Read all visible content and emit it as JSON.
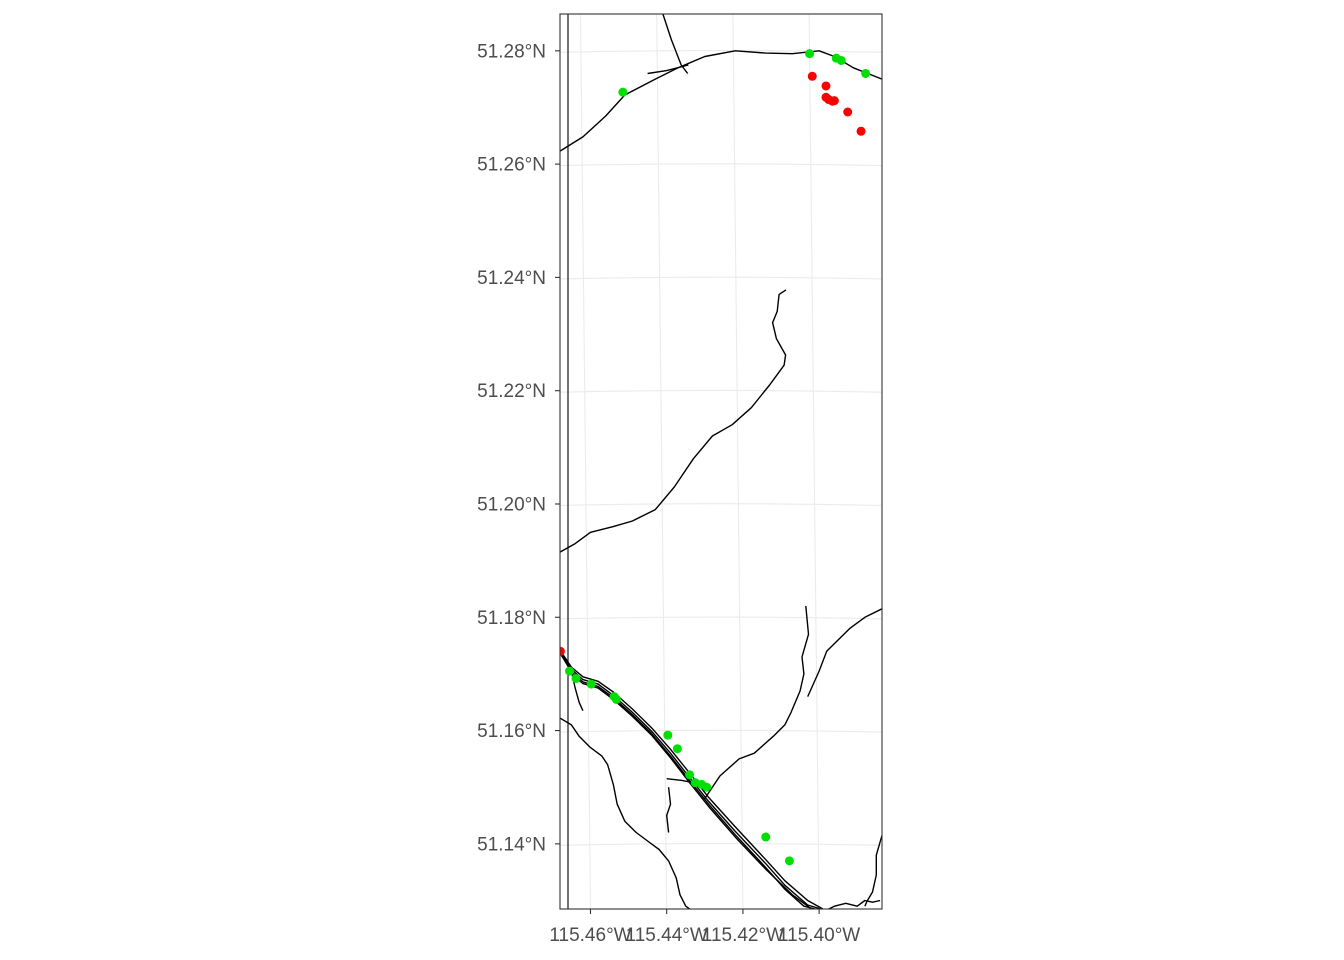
{
  "chart_data": {
    "type": "scatter",
    "title": "",
    "xlabel": "",
    "ylabel": "",
    "xlim": [
      -115.468,
      -115.3835
    ],
    "ylim": [
      51.1285,
      51.2865
    ],
    "x_ticks": [
      {
        "value": -115.46,
        "label": "115.46°W"
      },
      {
        "value": -115.44,
        "label": "115.44°W"
      },
      {
        "value": -115.42,
        "label": "115.42°W"
      },
      {
        "value": -115.4,
        "label": "115.40°W"
      }
    ],
    "y_ticks": [
      {
        "value": 51.14,
        "label": "51.14°N"
      },
      {
        "value": 51.16,
        "label": "51.16°N"
      },
      {
        "value": 51.18,
        "label": "51.18°N"
      },
      {
        "value": 51.2,
        "label": "51.20°N"
      },
      {
        "value": 51.22,
        "label": "51.22°N"
      },
      {
        "value": 51.24,
        "label": "51.24°N"
      },
      {
        "value": 51.26,
        "label": "51.26°N"
      },
      {
        "value": 51.28,
        "label": "51.28°N"
      }
    ],
    "grid": true,
    "legend": "none",
    "colors": {
      "green": "#00e000",
      "red": "#ff0000",
      "lines": "#000000",
      "grid": "#ebebeb",
      "frame": "#333333",
      "tick_text": "#4d4d4d"
    },
    "series": [
      {
        "color": "#00e000",
        "points": [
          {
            "x": -115.4515,
            "y": 51.2727
          },
          {
            "x": -115.4025,
            "y": 51.2795
          },
          {
            "x": -115.3955,
            "y": 51.2787
          },
          {
            "x": -115.3942,
            "y": 51.2783
          },
          {
            "x": -115.3878,
            "y": 51.276
          },
          {
            "x": -115.4655,
            "y": 51.1705
          },
          {
            "x": -115.4638,
            "y": 51.1692
          },
          {
            "x": -115.4598,
            "y": 51.1682
          },
          {
            "x": -115.4538,
            "y": 51.166
          },
          {
            "x": -115.4532,
            "y": 51.1655
          },
          {
            "x": -115.4397,
            "y": 51.1592
          },
          {
            "x": -115.4372,
            "y": 51.1568
          },
          {
            "x": -115.434,
            "y": 51.1522
          },
          {
            "x": -115.4325,
            "y": 51.1508
          },
          {
            "x": -115.4308,
            "y": 51.1505
          },
          {
            "x": -115.4295,
            "y": 51.15
          },
          {
            "x": -115.414,
            "y": 51.1412
          },
          {
            "x": -115.4078,
            "y": 51.137
          }
        ]
      },
      {
        "color": "#ff0000",
        "points": [
          {
            "x": -115.4018,
            "y": 51.2755
          },
          {
            "x": -115.3982,
            "y": 51.2738
          },
          {
            "x": -115.3982,
            "y": 51.2718
          },
          {
            "x": -115.3975,
            "y": 51.2714
          },
          {
            "x": -115.3965,
            "y": 51.2711
          },
          {
            "x": -115.396,
            "y": 51.2712
          },
          {
            "x": -115.3925,
            "y": 51.2692
          },
          {
            "x": -115.389,
            "y": 51.2658
          },
          {
            "x": -115.4679,
            "y": 51.174
          }
        ]
      }
    ],
    "line_features": [
      [
        [
          -115.468,
          51.2623
        ],
        [
          -115.462,
          51.2648
        ],
        [
          -115.456,
          51.2685
        ],
        [
          -115.451,
          51.2722
        ],
        [
          -115.443,
          51.275
        ],
        [
          -115.437,
          51.277
        ],
        [
          -115.43,
          51.279
        ],
        [
          -115.422,
          51.28
        ],
        [
          -115.414,
          51.2796
        ],
        [
          -115.407,
          51.2795
        ],
        [
          -115.4,
          51.28
        ],
        [
          -115.396,
          51.279
        ],
        [
          -115.391,
          51.277
        ],
        [
          -115.3835,
          51.275
        ]
      ],
      [
        [
          -115.441,
          51.2865
        ],
        [
          -115.4388,
          51.282
        ],
        [
          -115.4362,
          51.2775
        ],
        [
          -115.4345,
          51.276
        ]
      ],
      [
        [
          -115.4343,
          51.2775
        ],
        [
          -115.44,
          51.2765
        ],
        [
          -115.445,
          51.276
        ]
      ],
      [
        [
          -115.4087,
          51.2378
        ],
        [
          -115.4105,
          51.237
        ],
        [
          -115.411,
          51.234
        ],
        [
          -115.4122,
          51.232
        ],
        [
          -115.4112,
          51.2292
        ],
        [
          -115.4088,
          51.2263
        ],
        [
          -115.4092,
          51.2245
        ],
        [
          -115.413,
          51.221
        ],
        [
          -115.4178,
          51.217
        ],
        [
          -115.4228,
          51.214
        ],
        [
          -115.428,
          51.212
        ],
        [
          -115.433,
          51.208
        ],
        [
          -115.438,
          51.203
        ],
        [
          -115.443,
          51.199
        ],
        [
          -115.449,
          51.197
        ],
        [
          -115.454,
          51.196
        ],
        [
          -115.46,
          51.195
        ],
        [
          -115.464,
          51.193
        ],
        [
          -115.468,
          51.1915
        ]
      ],
      [
        [
          -115.4035,
          51.182
        ],
        [
          -115.4028,
          51.177
        ],
        [
          -115.4045,
          51.173
        ],
        [
          -115.404,
          51.17
        ],
        [
          -115.405,
          51.167
        ],
        [
          -115.4075,
          51.163
        ],
        [
          -115.409,
          51.161
        ],
        [
          -115.412,
          51.159
        ],
        [
          -115.417,
          51.156
        ],
        [
          -115.421,
          51.155
        ],
        [
          -115.426,
          51.152
        ],
        [
          -115.43,
          51.148
        ]
      ],
      [
        [
          -115.403,
          51.166
        ],
        [
          -115.4,
          51.1705
        ],
        [
          -115.398,
          51.174
        ],
        [
          -115.395,
          51.176
        ],
        [
          -115.392,
          51.178
        ],
        [
          -115.388,
          51.18
        ],
        [
          -115.3835,
          51.1815
        ]
      ],
      [
        [
          -115.468,
          51.1742
        ],
        [
          -115.465,
          51.1712
        ],
        [
          -115.462,
          51.1695
        ],
        [
          -115.458,
          51.1687
        ],
        [
          -115.454,
          51.1668
        ],
        [
          -115.449,
          51.1638
        ],
        [
          -115.444,
          51.1605
        ],
        [
          -115.439,
          51.1567
        ],
        [
          -115.434,
          51.1525
        ],
        [
          -115.429,
          51.1482
        ],
        [
          -115.422,
          51.143
        ],
        [
          -115.414,
          51.1372
        ],
        [
          -115.409,
          51.1335
        ],
        [
          -115.403,
          51.13
        ],
        [
          -115.399,
          51.1285
        ]
      ],
      [
        [
          -115.468,
          51.174
        ],
        [
          -115.465,
          51.1708
        ],
        [
          -115.462,
          51.169
        ],
        [
          -115.458,
          51.1682
        ],
        [
          -115.454,
          51.1662
        ],
        [
          -115.449,
          51.1632
        ],
        [
          -115.444,
          51.1599
        ],
        [
          -115.439,
          51.156
        ],
        [
          -115.434,
          51.1517
        ],
        [
          -115.429,
          51.1475
        ],
        [
          -115.422,
          51.1422
        ],
        [
          -115.414,
          51.1365
        ],
        [
          -115.409,
          51.1327
        ],
        [
          -115.403,
          51.1292
        ],
        [
          -115.3995,
          51.1285
        ]
      ],
      [
        [
          -115.468,
          51.1737
        ],
        [
          -115.465,
          51.1704
        ],
        [
          -115.462,
          51.1686
        ],
        [
          -115.458,
          51.1678
        ],
        [
          -115.454,
          51.1658
        ],
        [
          -115.449,
          51.1628
        ],
        [
          -115.444,
          51.1595
        ],
        [
          -115.439,
          51.1555
        ],
        [
          -115.434,
          51.1512
        ],
        [
          -115.429,
          51.147
        ],
        [
          -115.422,
          51.1416
        ],
        [
          -115.414,
          51.1358
        ],
        [
          -115.409,
          51.132
        ],
        [
          -115.404,
          51.129
        ],
        [
          -115.401,
          51.1285
        ]
      ],
      [
        [
          -115.465,
          51.17
        ],
        [
          -115.462,
          51.1683
        ],
        [
          -115.458,
          51.1675
        ],
        [
          -115.454,
          51.1655
        ],
        [
          -115.449,
          51.1625
        ],
        [
          -115.444,
          51.1592
        ],
        [
          -115.439,
          51.1552
        ],
        [
          -115.434,
          51.1508
        ],
        [
          -115.429,
          51.1466
        ],
        [
          -115.422,
          51.1412
        ],
        [
          -115.414,
          51.1355
        ],
        [
          -115.407,
          51.131
        ],
        [
          -115.402,
          51.1285
        ]
      ],
      [
        [
          -115.465,
          51.1705
        ],
        [
          -115.464,
          51.1675
        ],
        [
          -115.463,
          51.165
        ],
        [
          -115.462,
          51.1635
        ]
      ],
      [
        [
          -115.468,
          51.1622
        ],
        [
          -115.465,
          51.161
        ],
        [
          -115.463,
          51.159
        ],
        [
          -115.46,
          51.157
        ],
        [
          -115.457,
          51.1555
        ],
        [
          -115.4555,
          51.154
        ],
        [
          -115.454,
          51.1505
        ],
        [
          -115.453,
          51.147
        ],
        [
          -115.451,
          51.144
        ],
        [
          -115.448,
          51.142
        ],
        [
          -115.445,
          51.1405
        ],
        [
          -115.442,
          51.139
        ],
        [
          -115.4395,
          51.137
        ],
        [
          -115.4375,
          51.134
        ],
        [
          -115.4365,
          51.131
        ],
        [
          -115.435,
          51.129
        ],
        [
          -115.434,
          51.1285
        ]
      ],
      [
        [
          -115.4395,
          51.15
        ],
        [
          -115.439,
          51.147
        ],
        [
          -115.44,
          51.145
        ],
        [
          -115.4395,
          51.142
        ]
      ],
      [
        [
          -115.44,
          51.1515
        ],
        [
          -115.436,
          51.1512
        ],
        [
          -115.433,
          51.1508
        ]
      ],
      [
        [
          -115.3835,
          51.1415
        ],
        [
          -115.385,
          51.138
        ],
        [
          -115.385,
          51.1345
        ],
        [
          -115.386,
          51.1315
        ],
        [
          -115.3875,
          51.1298
        ],
        [
          -115.388,
          51.129
        ]
      ],
      [
        [
          -115.3975,
          51.1285
        ],
        [
          -115.396,
          51.129
        ],
        [
          -115.393,
          51.1295
        ],
        [
          -115.39,
          51.129
        ],
        [
          -115.388,
          51.13
        ],
        [
          -115.386,
          51.1297
        ],
        [
          -115.384,
          51.13
        ]
      ]
    ]
  }
}
